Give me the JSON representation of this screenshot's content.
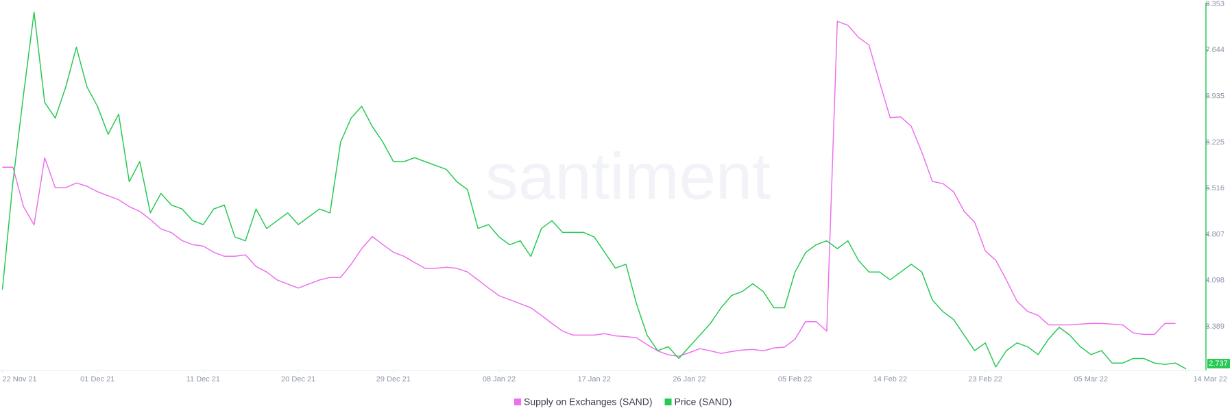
{
  "chart_data": {
    "type": "line",
    "watermark": "santiment",
    "x": [
      "2021-11-22",
      "2021-11-23",
      "2021-11-24",
      "2021-11-25",
      "2021-11-26",
      "2021-11-27",
      "2021-11-28",
      "2021-11-29",
      "2021-11-30",
      "2021-12-01",
      "2021-12-02",
      "2021-12-03",
      "2021-12-04",
      "2021-12-05",
      "2021-12-06",
      "2021-12-07",
      "2021-12-08",
      "2021-12-09",
      "2021-12-10",
      "2021-12-11",
      "2021-12-12",
      "2021-12-13",
      "2021-12-14",
      "2021-12-15",
      "2021-12-16",
      "2021-12-17",
      "2021-12-18",
      "2021-12-19",
      "2021-12-20",
      "2021-12-21",
      "2021-12-22",
      "2021-12-23",
      "2021-12-24",
      "2021-12-25",
      "2021-12-26",
      "2021-12-27",
      "2021-12-28",
      "2021-12-29",
      "2021-12-30",
      "2021-12-31",
      "2022-01-01",
      "2022-01-02",
      "2022-01-03",
      "2022-01-04",
      "2022-01-05",
      "2022-01-06",
      "2022-01-07",
      "2022-01-08",
      "2022-01-09",
      "2022-01-10",
      "2022-01-11",
      "2022-01-12",
      "2022-01-13",
      "2022-01-14",
      "2022-01-15",
      "2022-01-16",
      "2022-01-17",
      "2022-01-18",
      "2022-01-19",
      "2022-01-20",
      "2022-01-21",
      "2022-01-22",
      "2022-01-23",
      "2022-01-24",
      "2022-01-25",
      "2022-01-26",
      "2022-01-27",
      "2022-01-28",
      "2022-01-29",
      "2022-01-30",
      "2022-01-31",
      "2022-02-01",
      "2022-02-02",
      "2022-02-03",
      "2022-02-04",
      "2022-02-05",
      "2022-02-06",
      "2022-02-07",
      "2022-02-08",
      "2022-02-09",
      "2022-02-10",
      "2022-02-11",
      "2022-02-12",
      "2022-02-13",
      "2022-02-14",
      "2022-02-15",
      "2022-02-16",
      "2022-02-17",
      "2022-02-18",
      "2022-02-19",
      "2022-02-20",
      "2022-02-21",
      "2022-02-22",
      "2022-02-23",
      "2022-02-24",
      "2022-02-25",
      "2022-02-26",
      "2022-02-27",
      "2022-02-28",
      "2022-03-01",
      "2022-03-02",
      "2022-03-03",
      "2022-03-04",
      "2022-03-05",
      "2022-03-06",
      "2022-03-07",
      "2022-03-08",
      "2022-03-09",
      "2022-03-10",
      "2022-03-11",
      "2022-03-12",
      "2022-03-13",
      "2022-03-14"
    ],
    "series": [
      {
        "name": "Supply on Exchanges (SAND)",
        "color": "#ee6fee",
        "axis": "y2",
        "values": [
          205.3,
          205.3,
          194.5,
          189.5,
          207.9,
          199.7,
          199.7,
          201.0,
          200.1,
          198.6,
          197.5,
          196.4,
          194.5,
          193.2,
          191.0,
          188.4,
          187.4,
          185.2,
          184.1,
          183.7,
          182.0,
          180.9,
          180.9,
          181.3,
          178.1,
          176.6,
          174.4,
          173.3,
          172.2,
          173.3,
          174.4,
          175.1,
          175.1,
          178.7,
          183.0,
          186.3,
          184.1,
          182.0,
          180.9,
          179.2,
          177.6,
          177.6,
          177.9,
          177.6,
          176.6,
          174.4,
          172.2,
          170.1,
          169.0,
          167.9,
          166.8,
          164.7,
          162.5,
          160.4,
          159.3,
          159.3,
          159.3,
          159.7,
          159.1,
          158.9,
          158.6,
          156.7,
          155.0,
          153.9,
          153.5,
          154.5,
          155.6,
          155.0,
          154.3,
          154.8,
          155.2,
          155.4,
          155.0,
          155.8,
          156.0,
          158.2,
          163.0,
          163.0,
          160.4,
          245.3,
          244.2,
          240.9,
          238.8,
          228.6,
          218.9,
          219.1,
          216.5,
          209.4,
          201.4,
          200.8,
          198.6,
          193.2,
          190.2,
          182.4,
          179.8,
          174.4,
          168.6,
          165.8,
          164.7,
          162.1,
          162.1,
          162.1,
          162.3,
          162.5,
          162.5,
          162.3,
          162.1,
          159.9,
          159.5,
          159.5,
          162.5,
          162.5,
          null
        ]
      },
      {
        "name": "Price (SAND)",
        "color": "#26c953",
        "axis": "y",
        "values": [
          3.96,
          5.62,
          6.96,
          8.23,
          6.84,
          6.6,
          7.08,
          7.69,
          7.08,
          6.78,
          6.35,
          6.66,
          5.62,
          5.93,
          5.14,
          5.44,
          5.26,
          5.2,
          5.02,
          4.96,
          5.2,
          5.26,
          4.77,
          4.71,
          5.2,
          4.9,
          5.02,
          5.14,
          4.96,
          5.08,
          5.2,
          5.14,
          6.23,
          6.6,
          6.78,
          6.47,
          6.23,
          5.93,
          5.93,
          5.99,
          5.93,
          5.87,
          5.81,
          5.62,
          5.5,
          4.9,
          4.96,
          4.77,
          4.65,
          4.71,
          4.47,
          4.9,
          5.02,
          4.84,
          4.84,
          4.84,
          4.77,
          4.53,
          4.29,
          4.35,
          3.74,
          3.26,
          3.02,
          3.08,
          2.9,
          3.08,
          3.26,
          3.44,
          3.68,
          3.87,
          3.93,
          4.05,
          3.93,
          3.68,
          3.68,
          4.23,
          4.53,
          4.65,
          4.71,
          4.59,
          4.71,
          4.41,
          4.23,
          4.23,
          4.11,
          4.23,
          4.35,
          4.23,
          3.8,
          3.62,
          3.5,
          3.26,
          3.02,
          3.14,
          2.77,
          3.02,
          3.14,
          3.08,
          2.96,
          3.2,
          3.38,
          3.26,
          3.08,
          2.96,
          3.02,
          2.83,
          2.83,
          2.9,
          2.9,
          2.83,
          2.81,
          2.83,
          2.74
        ]
      }
    ],
    "ylim": [
      2.737,
      8.353
    ],
    "yticks": [
      2.737,
      3.389,
      4.098,
      4.807,
      5.516,
      6.225,
      6.935,
      7.644,
      8.353
    ],
    "y2lim": [
      150,
      250
    ],
    "xticks": [
      {
        "value": "2021-11-22",
        "label": "22 Nov 21"
      },
      {
        "value": "2021-12-01",
        "label": "01 Dec 21"
      },
      {
        "value": "2021-12-11",
        "label": "11 Dec 21"
      },
      {
        "value": "2021-12-20",
        "label": "20 Dec 21"
      },
      {
        "value": "2021-12-29",
        "label": "29 Dec 21"
      },
      {
        "value": "2022-01-08",
        "label": "08 Jan 22"
      },
      {
        "value": "2022-01-17",
        "label": "17 Jan 22"
      },
      {
        "value": "2022-01-26",
        "label": "26 Jan 22"
      },
      {
        "value": "2022-02-05",
        "label": "05 Feb 22"
      },
      {
        "value": "2022-02-14",
        "label": "14 Feb 22"
      },
      {
        "value": "2022-02-23",
        "label": "23 Feb 22"
      },
      {
        "value": "2022-03-05",
        "label": "05 Mar 22"
      },
      {
        "value": "2022-03-14",
        "label": "14 Mar 22"
      }
    ]
  }
}
